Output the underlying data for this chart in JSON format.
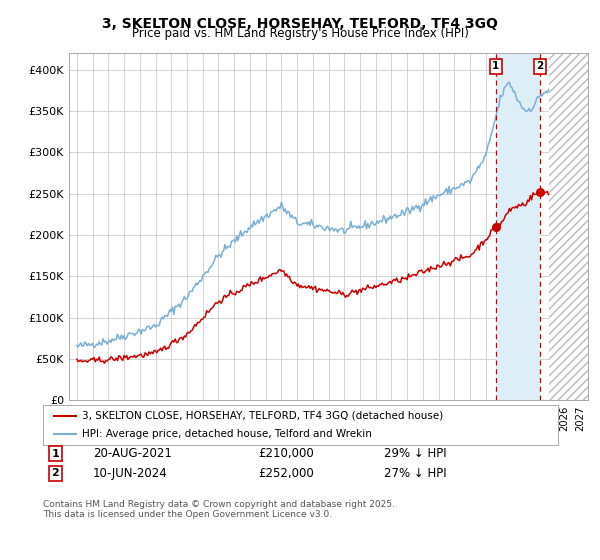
{
  "title": "3, SKELTON CLOSE, HORSEHAY, TELFORD, TF4 3GQ",
  "subtitle": "Price paid vs. HM Land Registry's House Price Index (HPI)",
  "ylim": [
    0,
    420000
  ],
  "yticks": [
    0,
    50000,
    100000,
    150000,
    200000,
    250000,
    300000,
    350000,
    400000
  ],
  "ytick_labels": [
    "£0",
    "£50K",
    "£100K",
    "£150K",
    "£200K",
    "£250K",
    "£300K",
    "£350K",
    "£400K"
  ],
  "hpi_color": "#7ab0d4",
  "price_color": "#cc0000",
  "shade_color": "#deeef7",
  "hatch_color": "#cccccc",
  "sale1_x": 2021.625,
  "sale1_y": 210000,
  "sale2_x": 2024.458,
  "sale2_y": 252000,
  "sale1_date": "20-AUG-2021",
  "sale1_price": 210000,
  "sale1_pct": "29% ↓ HPI",
  "sale2_date": "10-JUN-2024",
  "sale2_price": 252000,
  "sale2_pct": "27% ↓ HPI",
  "legend_label1": "3, SKELTON CLOSE, HORSEHAY, TELFORD, TF4 3GQ (detached house)",
  "legend_label2": "HPI: Average price, detached house, Telford and Wrekin",
  "footer": "Contains HM Land Registry data © Crown copyright and database right 2025.\nThis data is licensed under the Open Government Licence v3.0.",
  "bg_color": "#ffffff",
  "grid_color": "#cccccc",
  "xlim_left": 1994.5,
  "xlim_right": 2027.5,
  "hatch_start": 2025.0,
  "data_end": 2025.0
}
